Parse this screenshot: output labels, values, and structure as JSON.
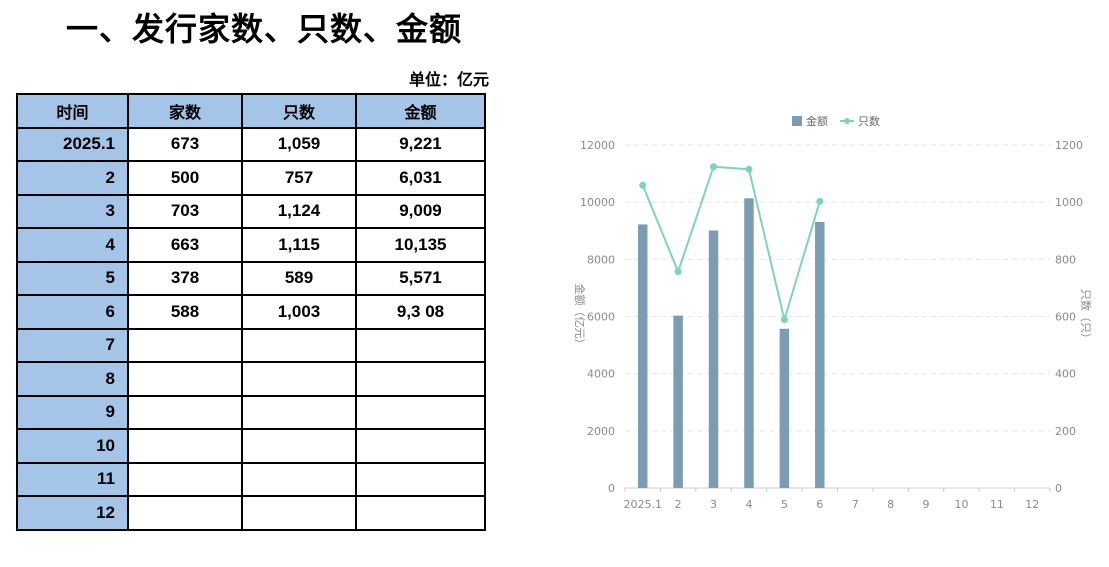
{
  "title": "一、发行家数、只数、金额",
  "unit_label": "单位：亿元",
  "table": {
    "headers": [
      "时间",
      "家数",
      "只数",
      "金额"
    ],
    "rows": [
      [
        "2025.1",
        "673",
        "1,059",
        "9,221"
      ],
      [
        "2",
        "500",
        "757",
        "6,031"
      ],
      [
        "3",
        "703",
        "1,124",
        "9,009"
      ],
      [
        "4",
        "663",
        "1,115",
        "10,135"
      ],
      [
        "5",
        "378",
        "589",
        "5,571"
      ],
      [
        "6",
        "588",
        "1,003",
        "9,3 08"
      ],
      [
        "7",
        "",
        "",
        ""
      ],
      [
        "8",
        "",
        "",
        ""
      ],
      [
        "9",
        "",
        "",
        ""
      ],
      [
        "10",
        "",
        "",
        ""
      ],
      [
        "11",
        "",
        "",
        ""
      ],
      [
        "12",
        "",
        "",
        ""
      ]
    ]
  },
  "chart_data": {
    "type": "bar",
    "categories": [
      "2025.1",
      "2",
      "3",
      "4",
      "5",
      "6",
      "7",
      "8",
      "9",
      "10",
      "11",
      "12"
    ],
    "series": [
      {
        "name": "金额",
        "type": "bar",
        "axis": "left",
        "values": [
          9221,
          6031,
          9009,
          10135,
          5571,
          9308,
          null,
          null,
          null,
          null,
          null,
          null
        ]
      },
      {
        "name": "只数",
        "type": "line",
        "axis": "right",
        "values": [
          1059,
          757,
          1124,
          1115,
          589,
          1003,
          null,
          null,
          null,
          null,
          null,
          null
        ]
      }
    ],
    "ylabel": "金额（亿元）",
    "y2label": "只数（只）",
    "ylim": [
      0,
      12000
    ],
    "y2lim": [
      0,
      1200
    ],
    "yticks": [
      0,
      2000,
      4000,
      6000,
      8000,
      10000,
      12000
    ],
    "y2ticks": [
      0,
      200,
      400,
      600,
      800,
      1000,
      1200
    ],
    "grid": true,
    "legend": "top-center",
    "colors": {
      "bar": "#7c9cb4",
      "line": "#7fd3bc",
      "axis_text": "#8a8a8a",
      "grid": "#e6e6e6",
      "header_fill": "#a4c4e8"
    }
  }
}
